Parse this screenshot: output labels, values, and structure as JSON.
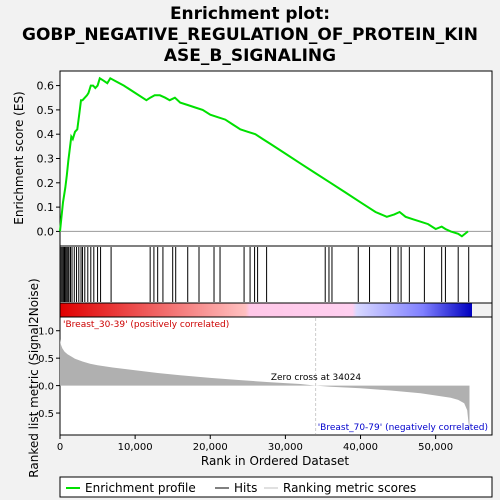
{
  "chart_data": {
    "type": "line",
    "title_lines": [
      "Enrichment plot:",
      "GOBP_NEGATIVE_REGULATION_OF_PROTEIN_KIN",
      "ASE_B_SIGNALING"
    ],
    "es_panel": {
      "ylabel": "Enrichment score (ES)",
      "ylim": [
        -0.06,
        0.66
      ],
      "yticks": [
        "0.0",
        "0.1",
        "0.2",
        "0.3",
        "0.4",
        "0.5",
        "0.6"
      ],
      "ytick_values": [
        0.0,
        0.1,
        0.2,
        0.3,
        0.4,
        0.5,
        0.6
      ],
      "series": [
        {
          "color": "#00e000",
          "x": [
            0,
            200,
            400,
            700,
            900,
            1100,
            1300,
            1500,
            1700,
            2000,
            2300,
            2600,
            2800,
            3000,
            3300,
            3600,
            3800,
            4100,
            4400,
            4700,
            5000,
            5300,
            5800,
            6300,
            6700,
            7300,
            8500,
            10000,
            11500,
            12000,
            12600,
            13300,
            14000,
            14600,
            15300,
            16000,
            17000,
            18000,
            19000,
            20000,
            21000,
            22000,
            23000,
            24000,
            25000,
            26000,
            27000,
            28000,
            30000,
            32000,
            34000,
            36000,
            38000,
            40000,
            42000,
            43500,
            44500,
            45200,
            46000,
            47000,
            48000,
            49000,
            50000,
            50800,
            51300,
            52000,
            53000,
            53500,
            54300
          ],
          "y": [
            0.0,
            0.06,
            0.12,
            0.18,
            0.23,
            0.29,
            0.34,
            0.39,
            0.38,
            0.41,
            0.42,
            0.49,
            0.54,
            0.54,
            0.55,
            0.56,
            0.57,
            0.6,
            0.6,
            0.59,
            0.6,
            0.63,
            0.62,
            0.61,
            0.63,
            0.62,
            0.6,
            0.57,
            0.54,
            0.55,
            0.56,
            0.56,
            0.55,
            0.54,
            0.55,
            0.53,
            0.52,
            0.51,
            0.5,
            0.48,
            0.47,
            0.46,
            0.44,
            0.42,
            0.41,
            0.4,
            0.38,
            0.36,
            0.32,
            0.28,
            0.24,
            0.2,
            0.16,
            0.12,
            0.08,
            0.06,
            0.07,
            0.08,
            0.06,
            0.05,
            0.04,
            0.03,
            0.01,
            0.02,
            0.01,
            0.0,
            -0.01,
            -0.02,
            0.0
          ]
        }
      ]
    },
    "hits": [
      0,
      150,
      300,
      450,
      600,
      750,
      900,
      1050,
      1200,
      1400,
      1600,
      1900,
      2200,
      2500,
      2800,
      3000,
      3300,
      3700,
      4100,
      4500,
      5000,
      5400,
      6800,
      12000,
      12500,
      13000,
      13700,
      15000,
      15400,
      17000,
      18500,
      20500,
      21300,
      24500,
      25300,
      25900,
      26300,
      27500,
      35300,
      35800,
      36200,
      39700,
      41200,
      44000,
      45000,
      45400,
      46500,
      48500,
      50800,
      51300,
      53000,
      54400
    ],
    "metric_panel": {
      "ylabel": "Ranked list metric (Signal2Noise)",
      "ylim": [
        -0.9,
        1.25
      ],
      "yticks": [
        "1.0",
        "0.5",
        "0.0",
        "-0.5"
      ],
      "ytick_values": [
        1.0,
        0.5,
        0.0,
        -0.5
      ],
      "x": [
        0,
        100,
        300,
        600,
        1000,
        1500,
        2000,
        3000,
        4000,
        5000,
        7000,
        10000,
        13000,
        16000,
        20000,
        24000,
        28000,
        32000,
        34024,
        36000,
        40000,
        44000,
        48000,
        50000,
        52000,
        53000,
        53800,
        54200,
        54500
      ],
      "y": [
        0.85,
        0.75,
        0.68,
        0.62,
        0.57,
        0.53,
        0.49,
        0.44,
        0.4,
        0.37,
        0.33,
        0.28,
        0.23,
        0.19,
        0.14,
        0.1,
        0.06,
        0.03,
        0.0,
        -0.02,
        -0.05,
        -0.09,
        -0.14,
        -0.18,
        -0.22,
        -0.26,
        -0.32,
        -0.45,
        -0.85
      ],
      "positive_label": "'Breast_30-39' (positively correlated)",
      "negative_label": "'Breast_70-79' (negatively correlated)",
      "zero_cross_label": "Zero cross at 34024",
      "zero_cross": 34024
    },
    "xlabel": "Rank in Ordered Dataset",
    "xlim": [
      0,
      57500
    ],
    "xticks": [
      "0",
      "10,000",
      "20,000",
      "30,000",
      "40,000",
      "50,000"
    ],
    "xtick_values": [
      0,
      10000,
      20000,
      30000,
      40000,
      50000
    ],
    "legend": [
      {
        "label": "Enrichment profile",
        "color": "#00e000"
      },
      {
        "label": "Hits",
        "color": "#000000"
      },
      {
        "label": "Ranking metric scores",
        "color": "#c0c0c0"
      }
    ],
    "colors": {
      "es_line": "#00e000",
      "positive": "#e00000",
      "negative": "#0000e0",
      "metric_fill": "#b0b0b0",
      "positive_text": "#cc0000",
      "negative_text": "#0000cc"
    }
  }
}
